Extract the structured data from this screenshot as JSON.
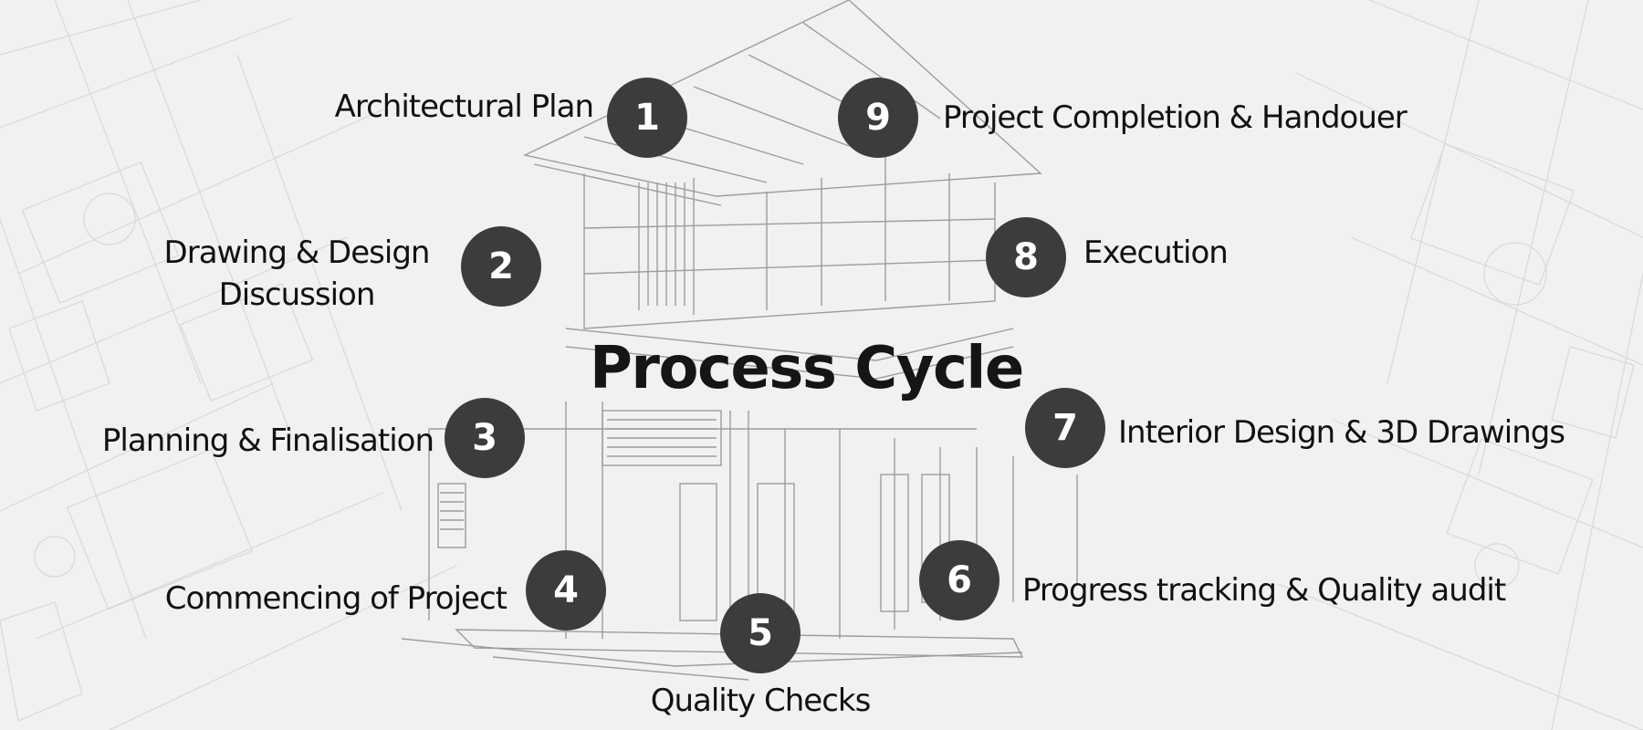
{
  "title": "Process Cycle",
  "colors": {
    "background": "#f1f1f1",
    "circle": "#3c3c3c",
    "circle_text": "#ffffff",
    "text": "#111111"
  },
  "steps": [
    {
      "number": "1",
      "label": "Architectural Plan"
    },
    {
      "number": "2",
      "label_lines": [
        "Drawing & Design",
        "Discussion"
      ]
    },
    {
      "number": "3",
      "label": "Planning & Finalisation"
    },
    {
      "number": "4",
      "label": "Commencing of Project"
    },
    {
      "number": "5",
      "label": "Quality Checks"
    },
    {
      "number": "6",
      "label": "Progress tracking & Quality audit"
    },
    {
      "number": "7",
      "label": "Interior Design & 3D Drawings"
    },
    {
      "number": "8",
      "label": "Execution"
    },
    {
      "number": "9",
      "label": "Project Completion & Handouer"
    }
  ]
}
